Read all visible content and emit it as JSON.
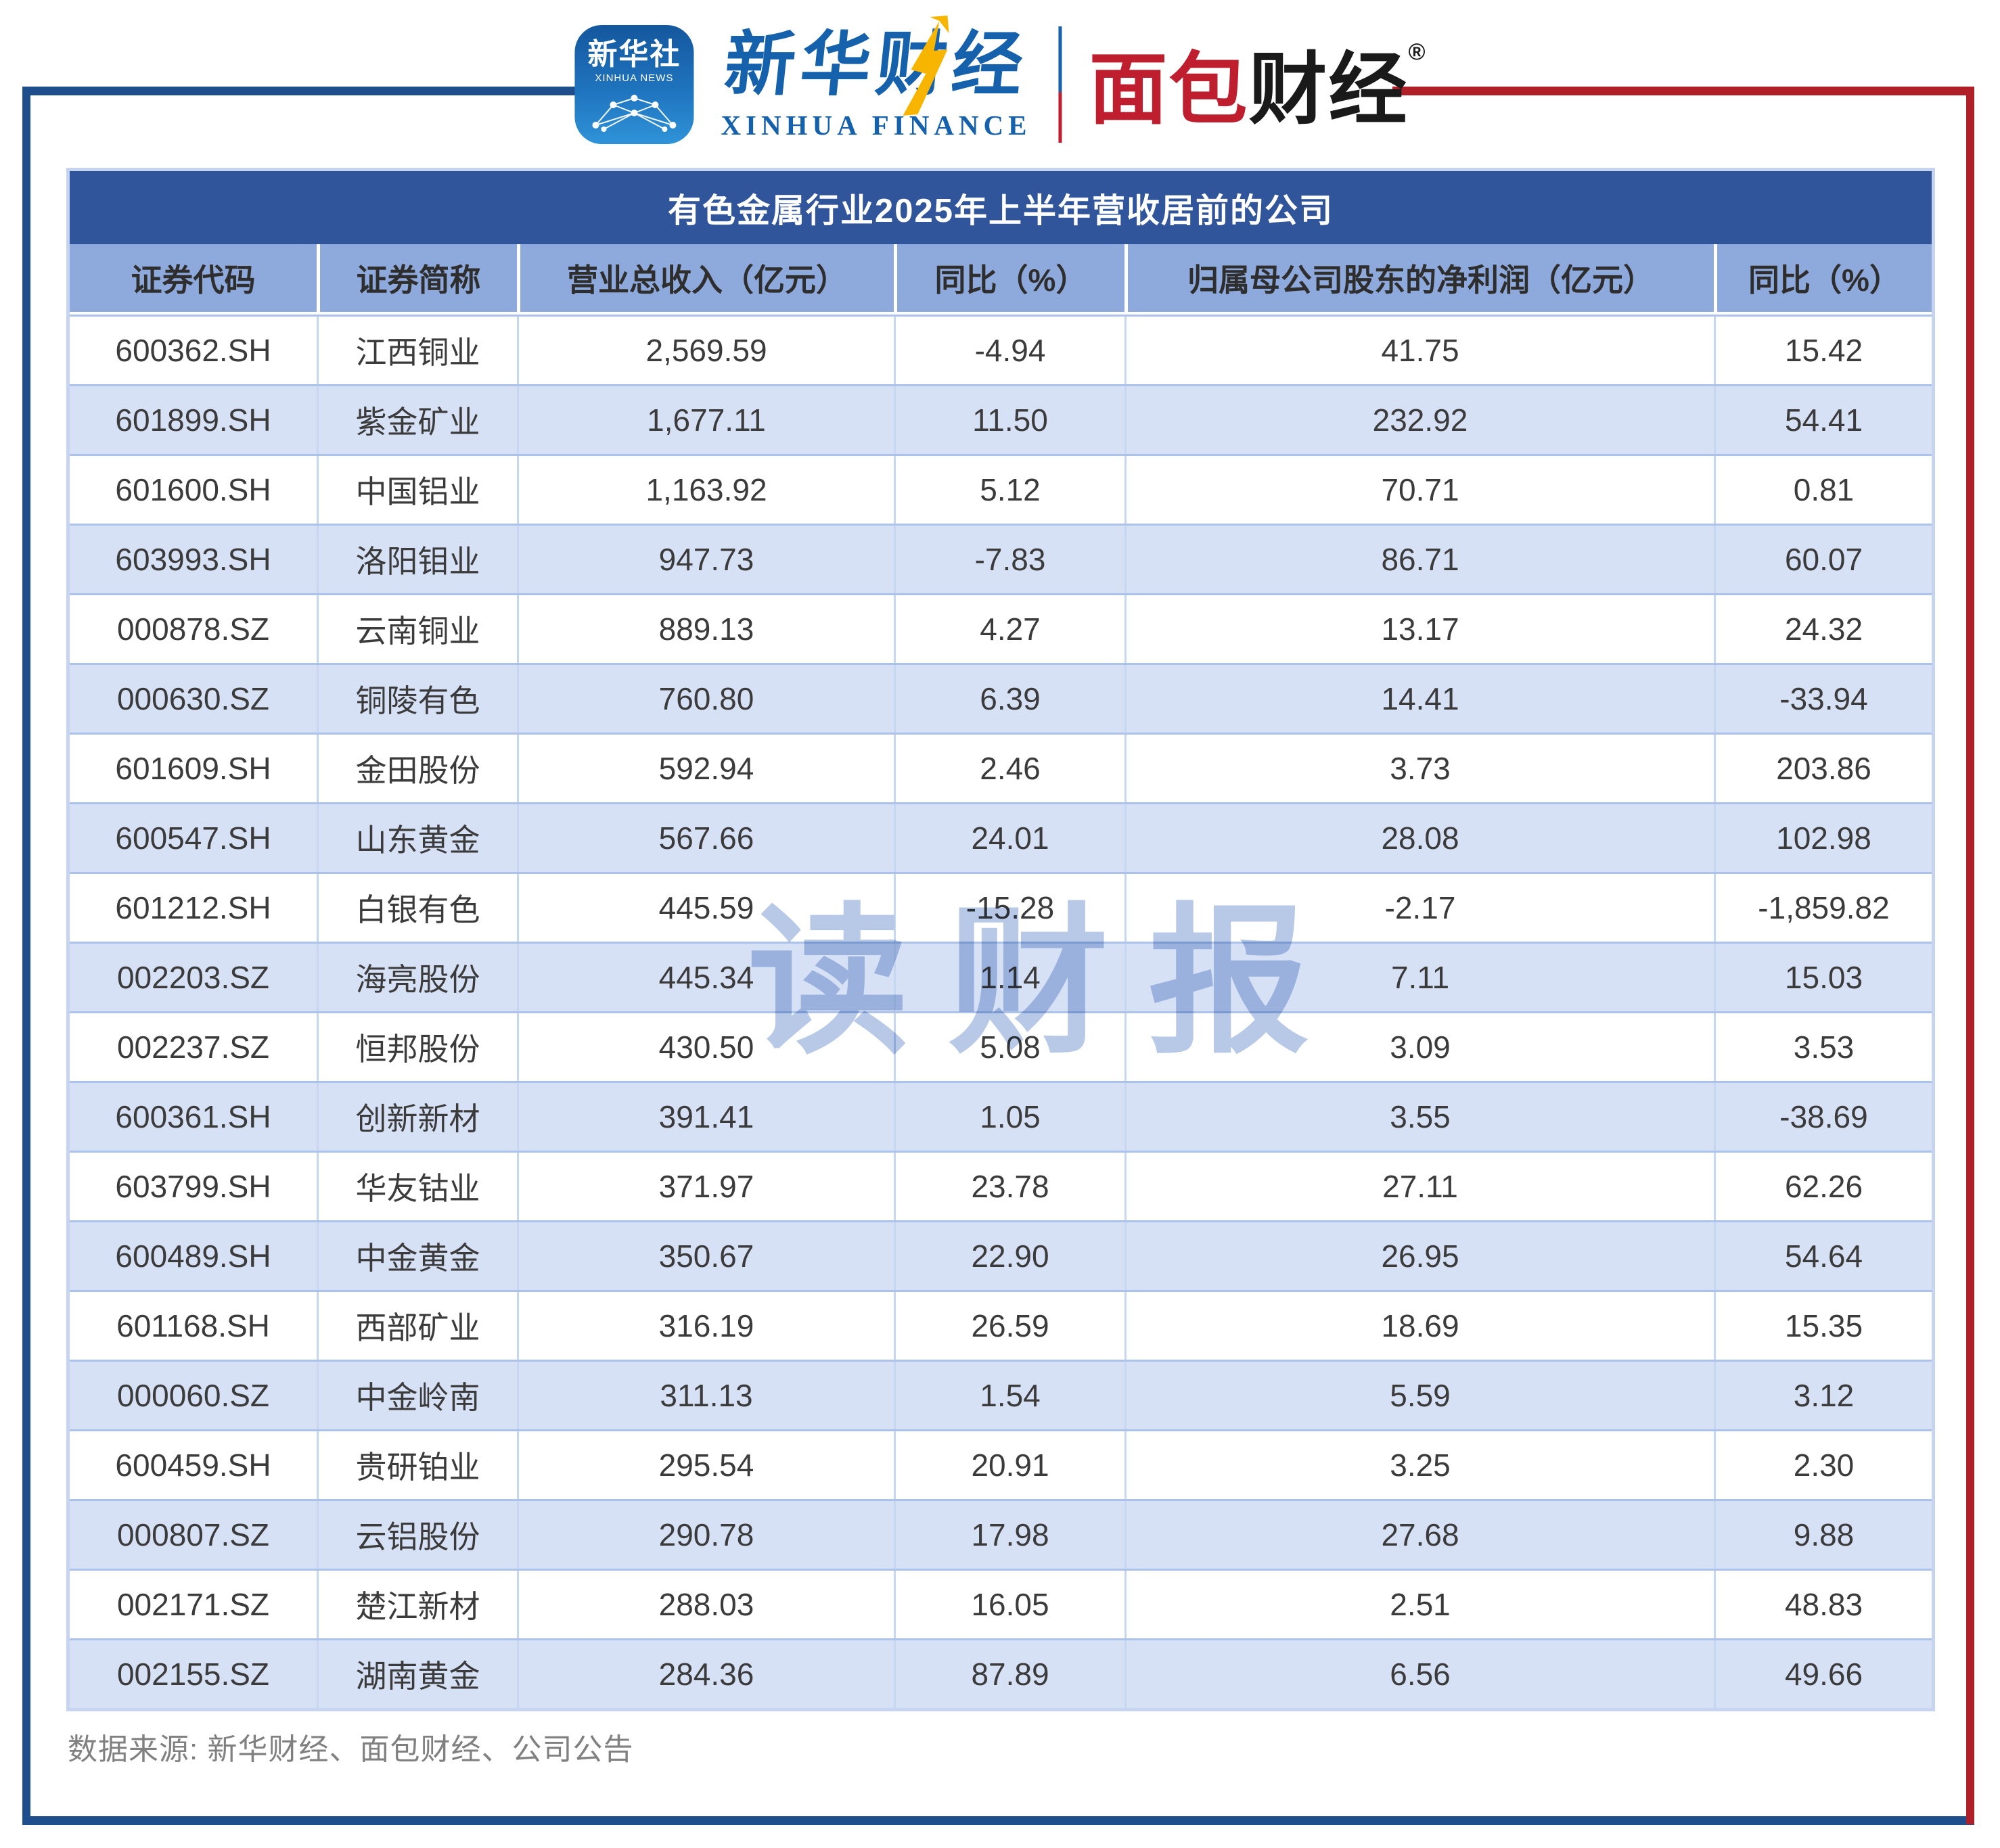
{
  "branding": {
    "xinhua_icon": {
      "line_cn": "新华社",
      "line_en": "XINHUA NEWS"
    },
    "xinhua_finance": {
      "cn": "新华财经",
      "en": "XINHUA FINANCE"
    },
    "mianbao": {
      "cn_red": "面包",
      "cn_black": "财经",
      "reg_mark": "®"
    }
  },
  "chart_data": {
    "type": "table",
    "title": "有色金属行业2025年上半年营收居前的公司",
    "columns": [
      "证券代码",
      "证券简称",
      "营业总收入（亿元）",
      "同比（%）",
      "归属母公司股东的净利润（亿元）",
      "同比（%）"
    ],
    "rows": [
      [
        "600362.SH",
        "江西铜业",
        "2,569.59",
        "-4.94",
        "41.75",
        "15.42"
      ],
      [
        "601899.SH",
        "紫金矿业",
        "1,677.11",
        "11.50",
        "232.92",
        "54.41"
      ],
      [
        "601600.SH",
        "中国铝业",
        "1,163.92",
        "5.12",
        "70.71",
        "0.81"
      ],
      [
        "603993.SH",
        "洛阳钼业",
        "947.73",
        "-7.83",
        "86.71",
        "60.07"
      ],
      [
        "000878.SZ",
        "云南铜业",
        "889.13",
        "4.27",
        "13.17",
        "24.32"
      ],
      [
        "000630.SZ",
        "铜陵有色",
        "760.80",
        "6.39",
        "14.41",
        "-33.94"
      ],
      [
        "601609.SH",
        "金田股份",
        "592.94",
        "2.46",
        "3.73",
        "203.86"
      ],
      [
        "600547.SH",
        "山东黄金",
        "567.66",
        "24.01",
        "28.08",
        "102.98"
      ],
      [
        "601212.SH",
        "白银有色",
        "445.59",
        "-15.28",
        "-2.17",
        "-1,859.82"
      ],
      [
        "002203.SZ",
        "海亮股份",
        "445.34",
        "1.14",
        "7.11",
        "15.03"
      ],
      [
        "002237.SZ",
        "恒邦股份",
        "430.50",
        "5.08",
        "3.09",
        "3.53"
      ],
      [
        "600361.SH",
        "创新新材",
        "391.41",
        "1.05",
        "3.55",
        "-38.69"
      ],
      [
        "603799.SH",
        "华友钴业",
        "371.97",
        "23.78",
        "27.11",
        "62.26"
      ],
      [
        "600489.SH",
        "中金黄金",
        "350.67",
        "22.90",
        "26.95",
        "54.64"
      ],
      [
        "601168.SH",
        "西部矿业",
        "316.19",
        "26.59",
        "18.69",
        "15.35"
      ],
      [
        "000060.SZ",
        "中金岭南",
        "311.13",
        "1.54",
        "5.59",
        "3.12"
      ],
      [
        "600459.SH",
        "贵研铂业",
        "295.54",
        "20.91",
        "3.25",
        "2.30"
      ],
      [
        "000807.SZ",
        "云铝股份",
        "290.78",
        "17.98",
        "27.68",
        "9.88"
      ],
      [
        "002171.SZ",
        "楚江新材",
        "288.03",
        "16.05",
        "2.51",
        "48.83"
      ],
      [
        "002155.SZ",
        "湖南黄金",
        "284.36",
        "87.89",
        "6.56",
        "49.66"
      ]
    ]
  },
  "watermark": {
    "text": "读财报"
  },
  "footer": {
    "source_note": "数据来源: 新华财经、面包财经、公司公告"
  },
  "colors": {
    "frame_blue": "#1F4E8C",
    "frame_red": "#B01E27",
    "title_bar_blue": "#31559A",
    "header_row_blue": "#8EA9DB",
    "alt_row_blue": "#D7E1F6",
    "logo_blue": "#1661AC",
    "logo_red": "#BE1E2D",
    "arrow_yellow": "#F7B500",
    "watermark_blue": "#B7C9E6",
    "footer_gray": "#808080"
  }
}
